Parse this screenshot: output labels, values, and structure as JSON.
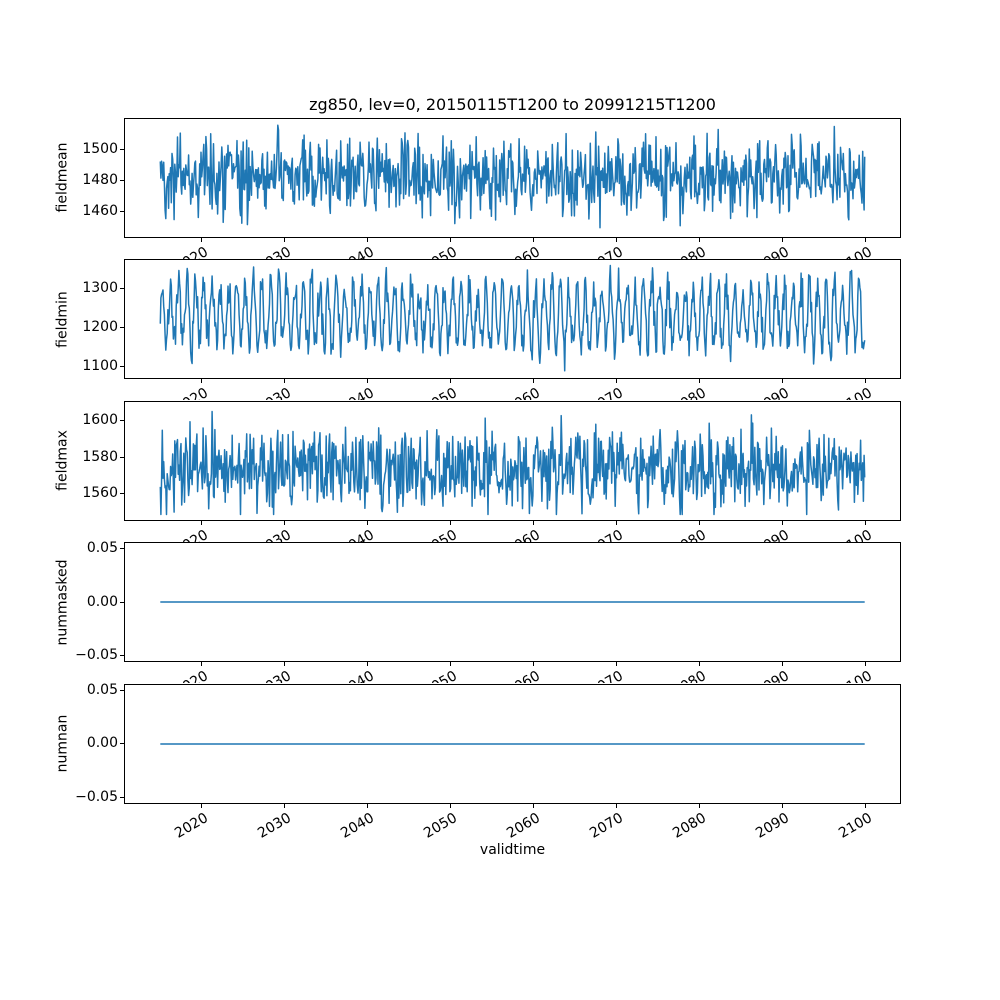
{
  "chart_data": {
    "type": "line",
    "title": "zg850, lev=0, 20150115T1200 to 20991215T1200",
    "xlabel": "validtime",
    "line_color": "#1f77b4",
    "background_color": "#ffffff",
    "axes_edge_color": "#000000",
    "grid": false,
    "legend": false,
    "x_start": 2015.04,
    "x_end": 2099.96,
    "points_per_series": 1020,
    "cadence": "monthly",
    "xlim": [
      2010.79,
      2104.21
    ],
    "xticks": [
      2020,
      2030,
      2040,
      2050,
      2060,
      2070,
      2080,
      2090,
      2100
    ],
    "xtick_labels": [
      "2020",
      "2030",
      "2040",
      "2050",
      "2060",
      "2070",
      "2080",
      "2090",
      "2100"
    ],
    "subplots": [
      {
        "ylabel": "fieldmean",
        "ylim": [
          1444,
          1520
        ],
        "yticks": [
          1460,
          1480,
          1500
        ],
        "ytick_labels": [
          "1460",
          "1480",
          "1500"
        ],
        "series": {
          "kind": "seasonal_noise",
          "seed": 42,
          "base": 1483,
          "seasonal_amp": 4,
          "noise_sd": 12,
          "data_min": 1448,
          "data_max": 1516
        }
      },
      {
        "ylabel": "fieldmin",
        "ylim": [
          1070,
          1373
        ],
        "yticks": [
          1100,
          1200,
          1300
        ],
        "ytick_labels": [
          "1100",
          "1200",
          "1300"
        ],
        "series": {
          "kind": "seasonal_noise",
          "seed": 7,
          "base": 1232,
          "seasonal_amp": 75,
          "noise_sd": 25,
          "data_min": 1084,
          "data_max": 1359
        }
      },
      {
        "ylabel": "fieldmax",
        "ylim": [
          1546,
          1610
        ],
        "yticks": [
          1560,
          1580,
          1600
        ],
        "ytick_labels": [
          "1560",
          "1580",
          "1600"
        ],
        "series": {
          "kind": "seasonal_noise",
          "seed": 13,
          "base": 1574,
          "seasonal_amp": 5,
          "noise_sd": 10,
          "data_min": 1549,
          "data_max": 1607
        }
      },
      {
        "ylabel": "nummasked",
        "ylim": [
          -0.055,
          0.055
        ],
        "yticks": [
          -0.05,
          0.0,
          0.05
        ],
        "ytick_labels": [
          "−0.05",
          "0.00",
          "0.05"
        ],
        "series": {
          "kind": "constant",
          "value": 0
        }
      },
      {
        "ylabel": "numnan",
        "ylim": [
          -0.055,
          0.055
        ],
        "yticks": [
          -0.05,
          0.0,
          0.05
        ],
        "ytick_labels": [
          "−0.05",
          "0.00",
          "0.05"
        ],
        "series": {
          "kind": "constant",
          "value": 0
        }
      }
    ]
  }
}
